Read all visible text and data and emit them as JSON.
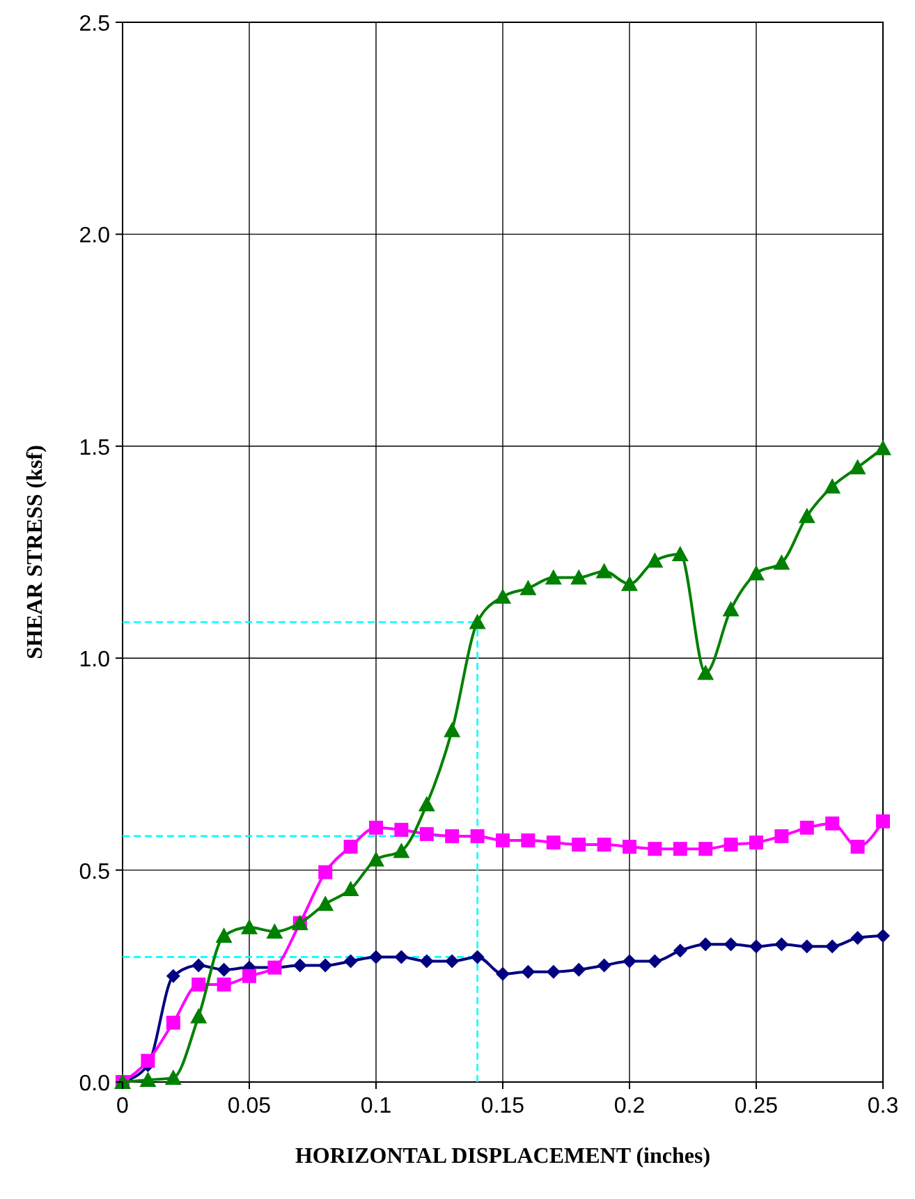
{
  "chart_data": {
    "type": "line",
    "xlabel": "HORIZONTAL DISPLACEMENT (inches)",
    "ylabel": "SHEAR STRESS (ksf)",
    "x": [
      0,
      0.01,
      0.02,
      0.03,
      0.04,
      0.05,
      0.06,
      0.07,
      0.08,
      0.09,
      0.1,
      0.11,
      0.12,
      0.13,
      0.14,
      0.15,
      0.16,
      0.17,
      0.18,
      0.19,
      0.2,
      0.21,
      0.22,
      0.23,
      0.24,
      0.25,
      0.26,
      0.27,
      0.28,
      0.29,
      0.3
    ],
    "series": [
      {
        "color": "#000080",
        "marker": "diamond",
        "values": [
          0,
          0.04,
          0.25,
          0.275,
          0.265,
          0.27,
          0.27,
          0.275,
          0.275,
          0.285,
          0.295,
          0.295,
          0.285,
          0.285,
          0.295,
          0.255,
          0.26,
          0.26,
          0.265,
          0.275,
          0.285,
          0.285,
          0.31,
          0.325,
          0.325,
          0.32,
          0.325,
          0.32,
          0.32,
          0.34,
          0.345
        ]
      },
      {
        "color": "#ff00ff",
        "marker": "square",
        "values": [
          0,
          0.05,
          0.14,
          0.23,
          0.23,
          0.25,
          0.27,
          0.375,
          0.495,
          0.555,
          0.6,
          0.595,
          0.585,
          0.58,
          0.58,
          0.57,
          0.57,
          0.565,
          0.56,
          0.56,
          0.555,
          0.55,
          0.55,
          0.55,
          0.56,
          0.565,
          0.58,
          0.6,
          0.61,
          0.555,
          0.615
        ]
      },
      {
        "color": "#008000",
        "marker": "triangle",
        "values": [
          0,
          0.005,
          0.01,
          0.155,
          0.345,
          0.365,
          0.355,
          0.375,
          0.42,
          0.455,
          0.525,
          0.545,
          0.655,
          0.83,
          1.085,
          1.145,
          1.165,
          1.19,
          1.19,
          1.205,
          1.175,
          1.23,
          1.245,
          0.965,
          1.115,
          1.2,
          1.225,
          1.335,
          1.405,
          1.45,
          1.495
        ]
      }
    ],
    "ref_lines": [
      {
        "axis": "x",
        "value": 0.14,
        "color": "#00ffff",
        "line_style": "dashed"
      },
      {
        "axis": "y",
        "value": 1.085,
        "color": "#00ffff",
        "line_style": "dashed"
      },
      {
        "axis": "y",
        "value": 0.58,
        "color": "#00ffff",
        "line_style": "dashed"
      },
      {
        "axis": "y",
        "value": 0.295,
        "color": "#00ffff",
        "line_style": "dashed"
      }
    ],
    "xlim": [
      0,
      0.3
    ],
    "xticks": [
      0,
      0.05,
      0.1,
      0.15,
      0.2,
      0.25,
      0.3
    ],
    "ylim": [
      0,
      2.5
    ],
    "yticks": [
      {
        "value": 0,
        "label": "0.0"
      },
      {
        "value": 0.5,
        "label": "0.5"
      },
      {
        "value": 1,
        "label": "1.0"
      },
      {
        "value": 1.5,
        "label": "1.5"
      },
      {
        "value": 2,
        "label": "2.0"
      },
      {
        "value": 2.5,
        "label": "2.5"
      }
    ],
    "grid": true,
    "line_style": "solid"
  }
}
